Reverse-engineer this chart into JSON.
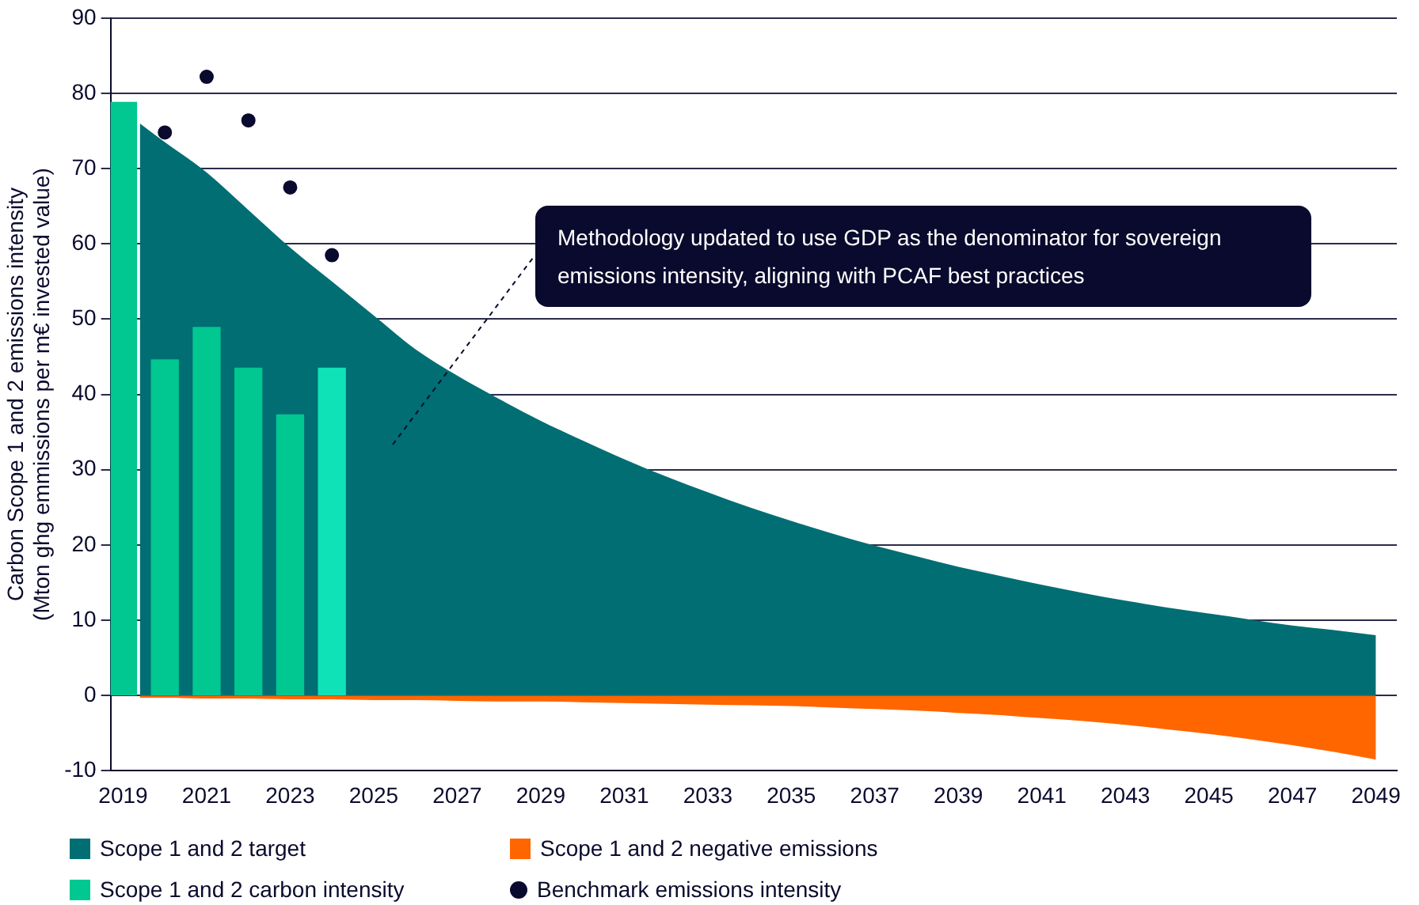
{
  "chart_data": {
    "type": "bar",
    "ylabel": "Carbon Scope 1 and 2 emissions intensity\n(Mton ghg emmissions per m€ invested value)",
    "x": [
      2019,
      2020,
      2021,
      2022,
      2023,
      2024
    ],
    "series": [
      {
        "name": "Scope 1 and 2 target",
        "type": "area",
        "color": "#006e73",
        "x": [
          2019.4,
          2020,
          2021,
          2022,
          2023,
          2024,
          2025,
          2026,
          2027,
          2028,
          2029,
          2030,
          2031,
          2032,
          2033,
          2034,
          2035,
          2036,
          2037,
          2038,
          2039,
          2040,
          2041,
          2042,
          2043,
          2044,
          2045,
          2046,
          2047,
          2048,
          2049
        ],
        "values": [
          76,
          73.5,
          69.5,
          64.5,
          59.5,
          55,
          50.5,
          46,
          42.5,
          39.4,
          36.5,
          33.9,
          31.4,
          29.1,
          27,
          25,
          23.2,
          21.5,
          19.9,
          18.5,
          17.1,
          15.9,
          14.7,
          13.6,
          12.6,
          11.7,
          10.9,
          10.1,
          9.3,
          8.7,
          8
        ]
      },
      {
        "name": "Scope 1 and 2 negative emissions",
        "type": "area",
        "color": "#ff6600",
        "x": [
          2019.4,
          2020,
          2021,
          2022,
          2023,
          2024,
          2025,
          2026,
          2027,
          2028,
          2029,
          2030,
          2031,
          2032,
          2033,
          2034,
          2035,
          2036,
          2037,
          2038,
          2039,
          2040,
          2041,
          2042,
          2043,
          2044,
          2045,
          2046,
          2047,
          2048,
          2049
        ],
        "values": [
          -0.3,
          -0.3,
          -0.4,
          -0.4,
          -0.5,
          -0.5,
          -0.6,
          -0.6,
          -0.7,
          -0.8,
          -0.8,
          -0.9,
          -1,
          -1.1,
          -1.2,
          -1.3,
          -1.4,
          -1.6,
          -1.8,
          -2,
          -2.3,
          -2.6,
          -3,
          -3.4,
          -3.9,
          -4.5,
          -5.1,
          -5.8,
          -6.6,
          -7.5,
          -8.5
        ]
      },
      {
        "name": "Scope 1 and 2 carbon intensity",
        "color": "#00c890",
        "colors": [
          "#00c890",
          "#00c890",
          "#00c890",
          "#00c890",
          "#00c890",
          "#10e2b8"
        ],
        "values": [
          78.8,
          44.6,
          48.9,
          43.5,
          37.3,
          43.5
        ]
      },
      {
        "name": "Benchmark emissions intensity",
        "type": "scatter",
        "marker": "circle",
        "color": "#0a0a2e",
        "x": [
          2020,
          2021,
          2022,
          2023,
          2024
        ],
        "values": [
          74.8,
          82.2,
          76.4,
          67.5,
          58.5
        ]
      }
    ],
    "xlim": [
      2018.7,
      2049.5
    ],
    "xticks": [
      2019,
      2021,
      2023,
      2025,
      2027,
      2029,
      2031,
      2033,
      2035,
      2037,
      2039,
      2041,
      2043,
      2045,
      2047,
      2049
    ],
    "ylim": [
      -10,
      90
    ],
    "yticks": [
      -10,
      0,
      10,
      20,
      30,
      40,
      50,
      60,
      70,
      80,
      90
    ],
    "grid": "y",
    "legend": "bottom",
    "annotations": [
      "Methodology updated to use GDP as the denominator for sovereign emissions intensity, aligning with PCAF best practices"
    ]
  }
}
